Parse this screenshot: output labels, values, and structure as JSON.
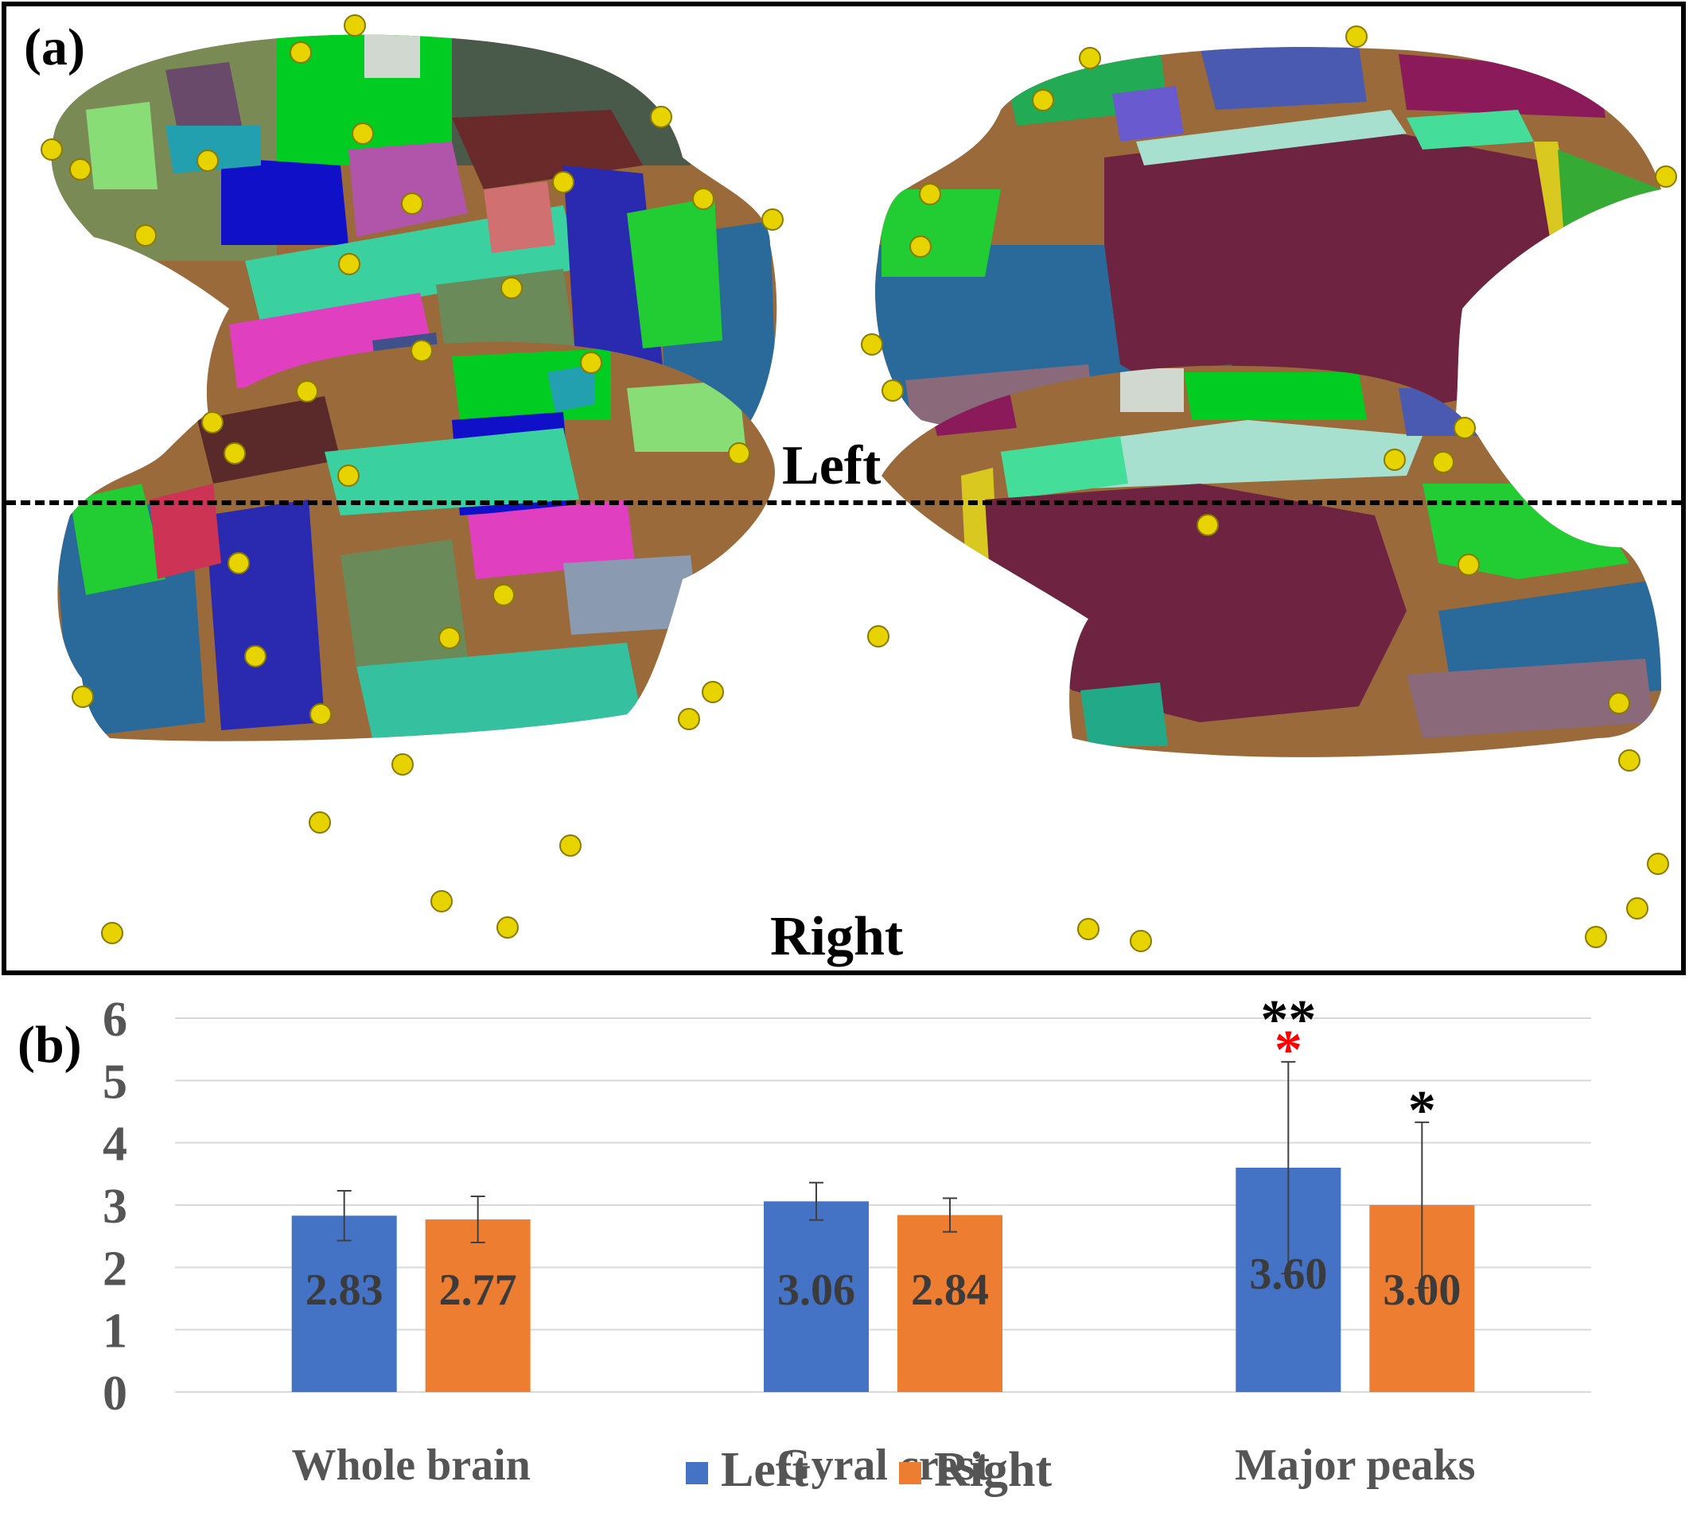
{
  "panel_a": {
    "letter": "(a)",
    "rows": [
      {
        "label": "Left"
      },
      {
        "label": "Right"
      }
    ]
  },
  "panel_b": {
    "letter": "(b)"
  },
  "colors": {
    "left": "#4472C4",
    "right": "#ED7D31",
    "peak": "#E6D300",
    "axis_text": "#555555",
    "bar_label": "#3b3b3b",
    "sig_red": "#ff0000",
    "sig_black": "#000000"
  },
  "chart_data": {
    "type": "bar",
    "categories": [
      "Whole brain",
      "Gyral crest",
      "Major peaks"
    ],
    "series": [
      {
        "name": "Left",
        "values": [
          2.83,
          3.06,
          3.6
        ],
        "labels": [
          "2.83",
          "3.06",
          "3.60"
        ],
        "errors": [
          0.4,
          0.3,
          1.7
        ]
      },
      {
        "name": "Right",
        "values": [
          2.77,
          2.84,
          3.0
        ],
        "labels": [
          "2.77",
          "2.84",
          "3.00"
        ],
        "errors": [
          0.37,
          0.27,
          1.33
        ]
      }
    ],
    "ylim": [
      0,
      6
    ],
    "yticks": [
      "0",
      "1",
      "2",
      "3",
      "4",
      "5",
      "6"
    ],
    "grid": true,
    "legend_position": "bottom-center",
    "annotations": [
      {
        "category": "Major peaks",
        "series": "Left",
        "text": "**",
        "color": "black"
      },
      {
        "category": "Major peaks",
        "series": "Left",
        "text": "*",
        "color": "red"
      },
      {
        "category": "Major peaks",
        "series": "Right",
        "text": "*",
        "color": "black"
      }
    ]
  }
}
